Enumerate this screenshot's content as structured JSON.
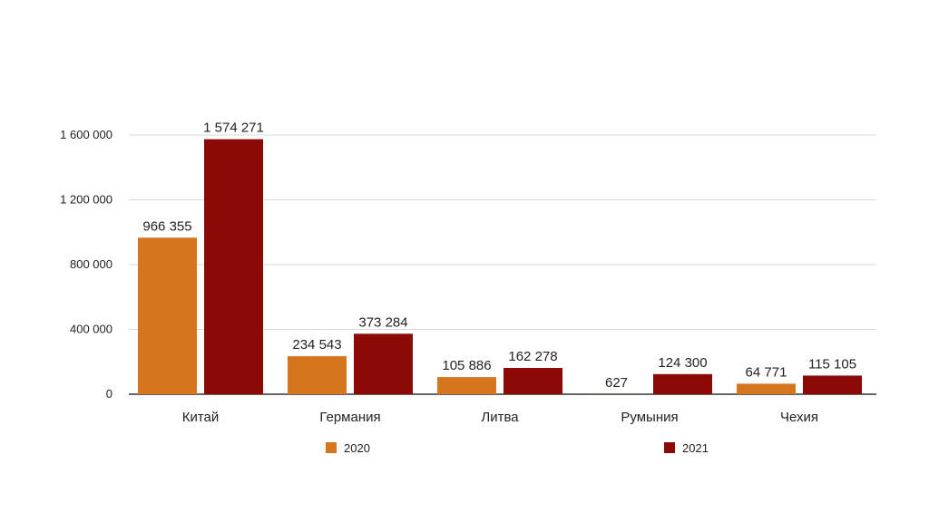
{
  "chart_data": {
    "type": "bar",
    "categories": [
      "Китай",
      "Германия",
      "Литва",
      "Румыния",
      "Чехия"
    ],
    "series": [
      {
        "name": "2020",
        "color": "#D5761F",
        "values": [
          966355,
          234543,
          105886,
          627,
          64771
        ],
        "labels": [
          "966 355",
          "234 543",
          "105 886",
          "627",
          "64 771"
        ]
      },
      {
        "name": "2021",
        "color": "#8B0A06",
        "values": [
          1574271,
          373284,
          162278,
          124300,
          115105
        ],
        "labels": [
          "1 574 271",
          "373 284",
          "162 278",
          "124 300",
          "115 105"
        ]
      }
    ],
    "ylim": [
      0,
      1600000
    ],
    "yticks": [
      0,
      400000,
      800000,
      1200000,
      1600000
    ],
    "ytick_labels": [
      "0",
      "400 000",
      "800 000",
      "1 200 000",
      "1 600 000"
    ],
    "grid": true,
    "legend": "bottom",
    "title": "",
    "xlabel": "",
    "ylabel": ""
  }
}
